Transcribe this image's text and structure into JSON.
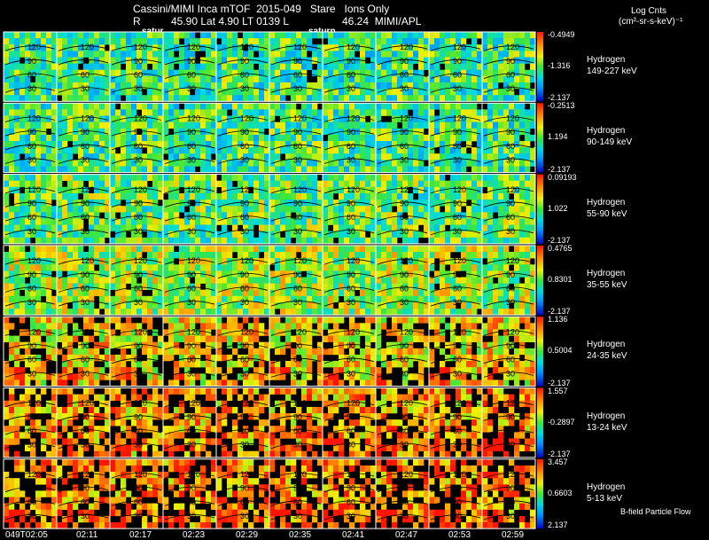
{
  "header": {
    "line1": "Cassini/MIMI Inca mTOF  2015-049   Stare   Ions Only",
    "line2_r": "R",
    "line2_rest": "45.90 Lat 4.90 LT 0139 L",
    "line2_l": "46.24  MIMI/APL",
    "satur_left": "satur",
    "saturn_right": "saturn",
    "units_1": "Log Cnts",
    "units_2": "(cm²-sr-s-keV)⁻¹"
  },
  "chart_data": {
    "type": "heatmap",
    "title": "Cassini/MIMI Inca mTOF  2015-049   Stare   Ions Only",
    "time_labels": [
      "049T02:05",
      "02:11",
      "02:17",
      "02:23",
      "02:29",
      "02:35",
      "02:41",
      "02:47",
      "02:53",
      "02:59"
    ],
    "contour_labels": [
      "120",
      "90",
      "60",
      "30"
    ],
    "colorbar_unit": "Log Cnts (cm²-sr-s-keV)⁻¹",
    "panels": [
      {
        "species": "Hydrogen",
        "energy": "149-227 keV",
        "max": "-0.4949",
        "mid": "-1.316",
        "min": "-2.137",
        "level": 0.45
      },
      {
        "species": "Hydrogen",
        "energy": "90-149 keV",
        "max": "-0.2513",
        "mid": "1.194",
        "min": "-2.137",
        "level": 0.45
      },
      {
        "species": "Hydrogen",
        "energy": "55-90 keV",
        "max": "0.09193",
        "mid": "1.022",
        "min": "-2.137",
        "level": 0.5
      },
      {
        "species": "Hydrogen",
        "energy": "35-55 keV",
        "max": "0.4765",
        "mid": "0.8301",
        "min": "-2.137",
        "level": 0.58
      },
      {
        "species": "Hydrogen",
        "energy": "24-35 keV",
        "max": "1.136",
        "mid": "0.5004",
        "min": "-2.137",
        "level": 0.7
      },
      {
        "species": "Hydrogen",
        "energy": "13-24 keV",
        "max": "1.557",
        "mid": "-0.2897",
        "min": "-2.137",
        "level": 0.78
      },
      {
        "species": "Hydrogen",
        "energy": "5-13 keV",
        "max": "3.457",
        "mid": "0.6603",
        "min": "2.137",
        "level": 0.82
      }
    ]
  },
  "legend": {
    "bfield_label": "B-field Particle Flow"
  }
}
